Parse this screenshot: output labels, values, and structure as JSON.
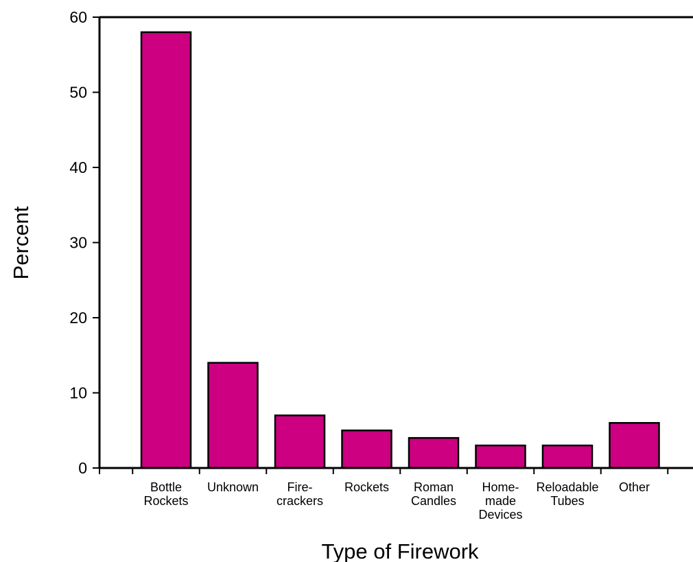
{
  "chart_data": {
    "type": "bar",
    "categories": [
      [
        "Bottle",
        "Rockets"
      ],
      [
        "Unknown"
      ],
      [
        "Fire-",
        "crackers"
      ],
      [
        "Rockets"
      ],
      [
        "Roman",
        "Candles"
      ],
      [
        "Home-",
        "made",
        "Devices"
      ],
      [
        "Reloadable",
        "Tubes"
      ],
      [
        "Other"
      ]
    ],
    "values": [
      58,
      14,
      7,
      5,
      4,
      3,
      3,
      6
    ],
    "title": "",
    "xlabel": "Type of Firework",
    "ylabel": "Percent",
    "ylim": [
      0,
      60
    ],
    "yticks": [
      0,
      10,
      20,
      30,
      40,
      50,
      60
    ],
    "bar_color": "#cc0080",
    "grid": false,
    "legend": "none"
  }
}
